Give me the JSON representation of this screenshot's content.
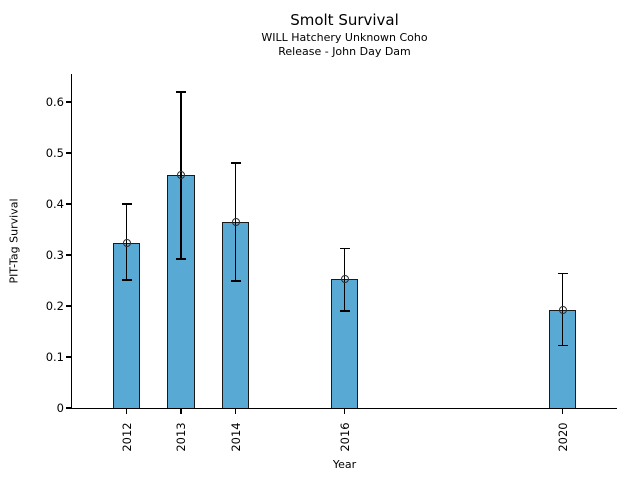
{
  "figure": {
    "title": "Smolt Survival",
    "subtitle_line1": "WILL Hatchery Unknown Coho",
    "subtitle_line2": "Release - John Day Dam"
  },
  "chart_data": {
    "type": "bar",
    "title": "Smolt Survival",
    "subtitle": [
      "WILL Hatchery Unknown Coho",
      "Release - John Day Dam"
    ],
    "xlabel": "Year",
    "ylabel": "PIT-Tag Survival",
    "categories": [
      2012,
      2013,
      2014,
      2016,
      2020
    ],
    "values": [
      0.324,
      0.456,
      0.364,
      0.252,
      0.193
    ],
    "error_low": [
      0.251,
      0.292,
      0.249,
      0.19,
      0.123
    ],
    "error_high": [
      0.4,
      0.62,
      0.48,
      0.313,
      0.264
    ],
    "marker": "open-circle",
    "yticks": [
      0,
      0.1,
      0.2,
      0.3,
      0.4,
      0.5,
      0.6
    ],
    "ytick_labels": [
      "0",
      "0.1",
      "0.2",
      "0.3",
      "0.4",
      "0.5",
      "0.6"
    ],
    "xtick_labels": [
      "2012",
      "2013",
      "2014",
      "2016",
      "2020"
    ],
    "xlim": [
      2011,
      2021
    ],
    "ylim": [
      0,
      0.655
    ],
    "bar_width_years": 0.5,
    "bar_color": "#58A9D4",
    "bar_edge_color": "#1a1a1a",
    "error_color": "#000000",
    "grid": false,
    "legend": null,
    "spines": [
      "left",
      "bottom"
    ],
    "xtick_rotation_deg": 90
  }
}
